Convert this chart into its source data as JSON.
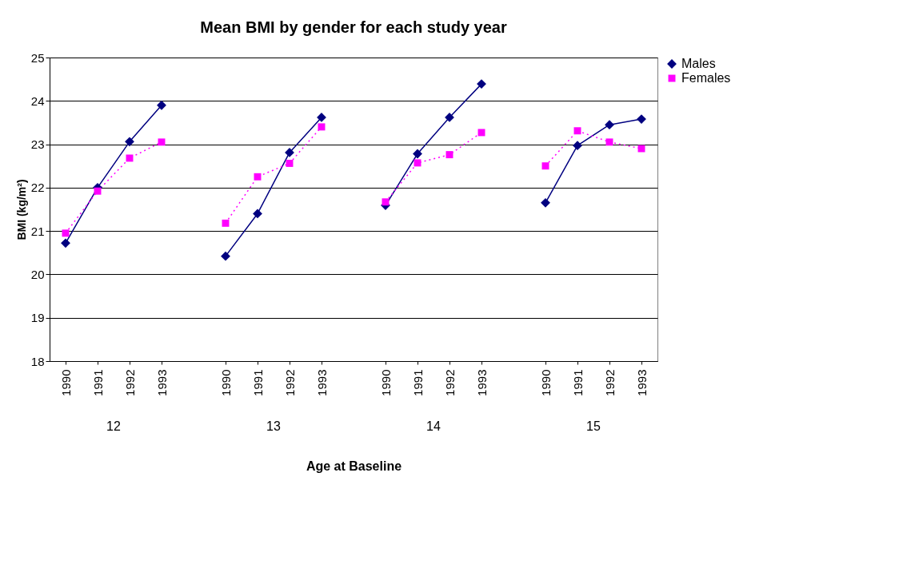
{
  "chart_data": {
    "type": "line",
    "title": "Mean BMI by gender for each study year",
    "xlabel": "Age at Baseline",
    "ylabel": "BMI (kg/m²)",
    "categories": [
      "1990",
      "1991",
      "1992",
      "1993",
      null,
      "1990",
      "1991",
      "1992",
      "1993",
      null,
      "1990",
      "1991",
      "1992",
      "1993",
      null,
      "1990",
      "1991",
      "1992",
      "1993"
    ],
    "annotations": [
      "12",
      "13",
      "14",
      "15"
    ],
    "series": [
      {
        "name": "Males",
        "color": "#000080",
        "marker": "diamond",
        "line_style": "solid",
        "values": [
          20.72,
          22.0,
          23.06,
          23.9,
          null,
          20.42,
          21.4,
          22.81,
          23.62,
          null,
          21.59,
          22.78,
          23.62,
          24.39,
          null,
          21.65,
          22.97,
          23.45,
          23.58
        ]
      },
      {
        "name": "Females",
        "color": "#ff00ff",
        "marker": "square",
        "line_style": "dotted",
        "values": [
          20.95,
          21.92,
          22.68,
          23.05,
          null,
          21.18,
          22.25,
          22.56,
          23.4,
          null,
          21.67,
          22.57,
          22.76,
          23.27,
          null,
          22.5,
          23.31,
          23.05,
          22.9
        ]
      }
    ],
    "ylim": [
      18,
      25
    ],
    "yticks": [
      18,
      19,
      20,
      21,
      22,
      23,
      24,
      25
    ],
    "grid": "y",
    "legend": "right"
  }
}
